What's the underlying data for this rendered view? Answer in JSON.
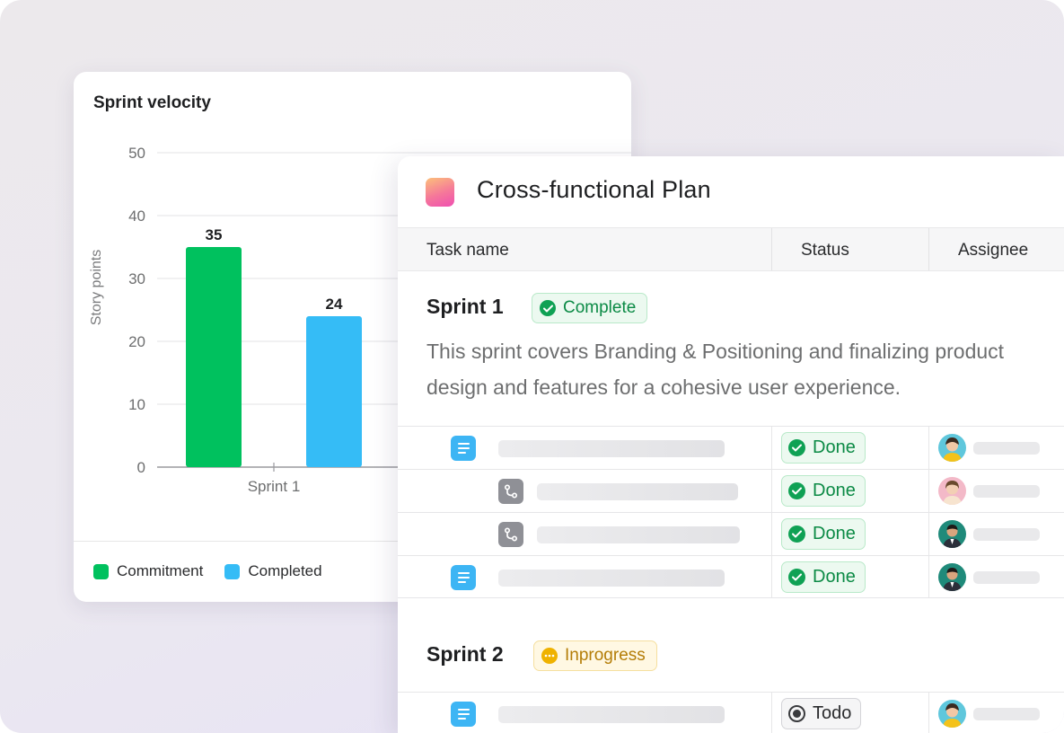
{
  "chart_card": {
    "title": "Sprint velocity"
  },
  "chart_data": {
    "type": "bar",
    "ylabel": "Story points",
    "xlabel": "",
    "ylim": [
      0,
      50
    ],
    "yticks": [
      "0",
      "10",
      "20",
      "30",
      "40",
      "50"
    ],
    "categories": [
      "Sprint 1"
    ],
    "series": [
      {
        "name": "Commitment",
        "values": [
          35
        ],
        "color": "#00c15e"
      },
      {
        "name": "Completed",
        "values": [
          24
        ],
        "color": "#35bcf6"
      }
    ],
    "legend_position": "bottom-left",
    "grid": true
  },
  "plan": {
    "title": "Cross-functional Plan",
    "columns": [
      "Task name",
      "Status",
      "Assignee"
    ],
    "sprint1": {
      "title": "Sprint 1",
      "badge": "Complete",
      "description_line1": "This sprint covers Branding & Positioning and finalizing product",
      "description_line2": "design and features for a cohesive user experience.",
      "tasks": [
        {
          "icon": "document-icon",
          "status": "Done"
        },
        {
          "icon": "subtask-icon",
          "status": "Done"
        },
        {
          "icon": "subtask-icon",
          "status": "Done"
        },
        {
          "icon": "document-icon",
          "status": "Done"
        }
      ]
    },
    "sprint2": {
      "title": "Sprint 2",
      "badge": "Inprogress",
      "tasks": [
        {
          "icon": "document-icon",
          "status": "Todo"
        }
      ]
    }
  },
  "colors": {
    "done_green": "#0fa154",
    "in_progress_amber": "#f0b400",
    "doc_blue": "#3db5f4"
  }
}
